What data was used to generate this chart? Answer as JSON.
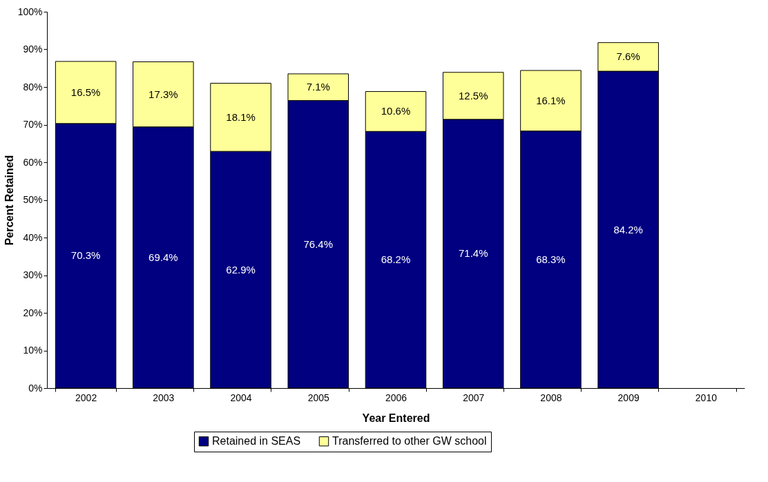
{
  "chart_data": {
    "type": "bar",
    "stacked": true,
    "xlabel": "Year Entered",
    "ylabel": "Percent Retained",
    "categories": [
      "2002",
      "2003",
      "2004",
      "2005",
      "2006",
      "2007",
      "2008",
      "2009",
      "2010"
    ],
    "series": [
      {
        "name": "Retained in SEAS",
        "color": "#000080",
        "values": [
          70.3,
          69.4,
          62.9,
          76.4,
          68.2,
          71.4,
          68.3,
          84.2,
          null
        ],
        "value_labels": [
          "70.3%",
          "69.4%",
          "62.9%",
          "76.4%",
          "68.2%",
          "71.4%",
          "68.3%",
          "84.2%",
          null
        ]
      },
      {
        "name": "Transferred to other GW school",
        "color": "#ffff99",
        "values": [
          16.5,
          17.3,
          18.1,
          7.1,
          10.6,
          12.5,
          16.1,
          7.6,
          null
        ],
        "value_labels": [
          "16.5%",
          "17.3%",
          "18.1%",
          "7.1%",
          "10.6%",
          "12.5%",
          "16.1%",
          "7.6%",
          null
        ]
      }
    ],
    "ylim": [
      0,
      100
    ],
    "yticks": [
      {
        "value": 0,
        "label": "0%"
      },
      {
        "value": 10,
        "label": "10%"
      },
      {
        "value": 20,
        "label": "20%"
      },
      {
        "value": 30,
        "label": "30%"
      },
      {
        "value": 40,
        "label": "40%"
      },
      {
        "value": 50,
        "label": "50%"
      },
      {
        "value": 60,
        "label": "60%"
      },
      {
        "value": 70,
        "label": "70%"
      },
      {
        "value": 80,
        "label": "80%"
      },
      {
        "value": 90,
        "label": "90%"
      },
      {
        "value": 100,
        "label": "100%"
      }
    ],
    "grid": false,
    "legend": "bottom"
  }
}
